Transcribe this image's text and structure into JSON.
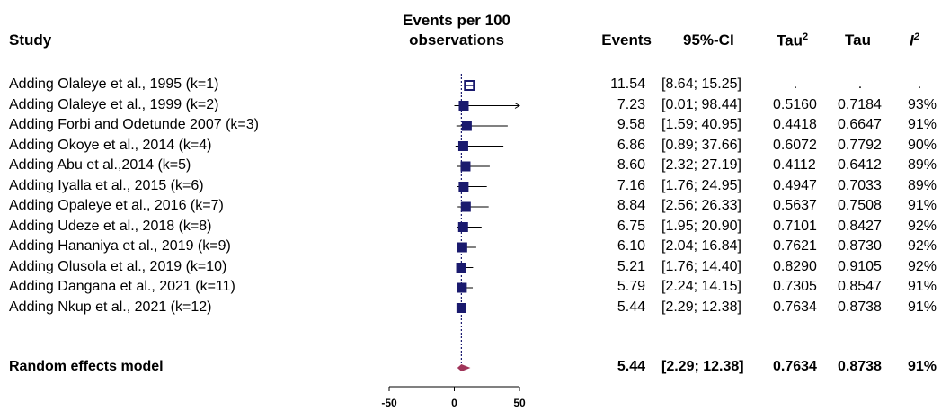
{
  "chart_data": {
    "type": "forest",
    "headers": {
      "study": "Study",
      "plot_title_line1": "Events per 100",
      "plot_title_line2": "observations",
      "events": "Events",
      "ci": "95%-CI",
      "tau2_base": "Tau",
      "tau2_sup": "2",
      "tau": "Tau",
      "i2_base": "I",
      "i2_sup": "2"
    },
    "xlim": [
      -50,
      50
    ],
    "ticks": [
      {
        "value": -50,
        "label": "-50"
      },
      {
        "value": 0,
        "label": "0"
      },
      {
        "value": 50,
        "label": "50"
      }
    ],
    "reference_line": 5.44,
    "rows": [
      {
        "study": "Adding Olaleye et al., 1995 (k=1)",
        "events": 11.54,
        "events_label": "11.54",
        "lower": 8.64,
        "upper": 15.25,
        "ci": "[8.64; 15.25]",
        "tau2": ".",
        "tau": ".",
        "i2": "."
      },
      {
        "study": "Adding Olaleye et al., 1999 (k=2)",
        "events": 7.23,
        "events_label": "7.23",
        "lower": 0.01,
        "upper": 98.44,
        "ci": "[0.01; 98.44]",
        "tau2": "0.5160",
        "tau": "0.7184",
        "i2": "93%"
      },
      {
        "study": "Adding Forbi and Odetunde 2007 (k=3)",
        "events": 9.58,
        "events_label": "9.58",
        "lower": 1.59,
        "upper": 40.95,
        "ci": "[1.59; 40.95]",
        "tau2": "0.4418",
        "tau": "0.6647",
        "i2": "91%"
      },
      {
        "study": "Adding Okoye et al., 2014 (k=4)",
        "events": 6.86,
        "events_label": "6.86",
        "lower": 0.89,
        "upper": 37.66,
        "ci": "[0.89; 37.66]",
        "tau2": "0.6072",
        "tau": "0.7792",
        "i2": "90%"
      },
      {
        "study": "Adding Abu et al.,2014 (k=5)",
        "events": 8.6,
        "events_label": "8.60",
        "lower": 2.32,
        "upper": 27.19,
        "ci": "[2.32; 27.19]",
        "tau2": "0.4112",
        "tau": "0.6412",
        "i2": "89%"
      },
      {
        "study": "Adding Iyalla et al., 2015 (k=6)",
        "events": 7.16,
        "events_label": "7.16",
        "lower": 1.76,
        "upper": 24.95,
        "ci": "[1.76; 24.95]",
        "tau2": "0.4947",
        "tau": "0.7033",
        "i2": "89%"
      },
      {
        "study": "Adding Opaleye et al., 2016 (k=7)",
        "events": 8.84,
        "events_label": "8.84",
        "lower": 2.56,
        "upper": 26.33,
        "ci": "[2.56; 26.33]",
        "tau2": "0.5637",
        "tau": "0.7508",
        "i2": "91%"
      },
      {
        "study": "Adding Udeze et al., 2018 (k=8)",
        "events": 6.75,
        "events_label": "6.75",
        "lower": 1.95,
        "upper": 20.9,
        "ci": "[1.95; 20.90]",
        "tau2": "0.7101",
        "tau": "0.8427",
        "i2": "92%"
      },
      {
        "study": "Adding Hananiya et al., 2019 (k=9)",
        "events": 6.1,
        "events_label": "6.10",
        "lower": 2.04,
        "upper": 16.84,
        "ci": "[2.04; 16.84]",
        "tau2": "0.7621",
        "tau": "0.8730",
        "i2": "92%"
      },
      {
        "study": "Adding Olusola et al., 2019 (k=10)",
        "events": 5.21,
        "events_label": "5.21",
        "lower": 1.76,
        "upper": 14.4,
        "ci": "[1.76; 14.40]",
        "tau2": "0.8290",
        "tau": "0.9105",
        "i2": "92%"
      },
      {
        "study": "Adding Dangana et al., 2021 (k=11)",
        "events": 5.79,
        "events_label": "5.79",
        "lower": 2.24,
        "upper": 14.15,
        "ci": "[2.24; 14.15]",
        "tau2": "0.7305",
        "tau": "0.8547",
        "i2": "91%"
      },
      {
        "study": "Adding Nkup et al., 2021 (k=12)",
        "events": 5.44,
        "events_label": "5.44",
        "lower": 2.29,
        "upper": 12.38,
        "ci": "[2.29; 12.38]",
        "tau2": "0.7634",
        "tau": "0.8738",
        "i2": "91%"
      }
    ],
    "summary": {
      "study": "Random effects model",
      "events": 5.44,
      "events_label": "5.44",
      "lower": 2.29,
      "upper": 12.38,
      "ci": "[2.29; 12.38]",
      "tau2": "0.7634",
      "tau": "0.8738",
      "i2": "91%"
    },
    "colors": {
      "square": "#1a1a6e",
      "square_first_fill": "#1a1a6e",
      "diamond": "#a0355a",
      "reference": "#1a1a6e"
    }
  }
}
